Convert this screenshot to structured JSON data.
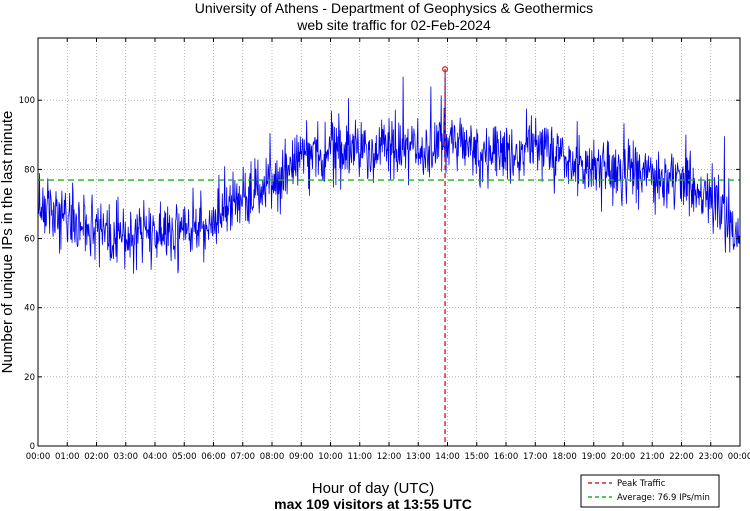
{
  "chart_data": {
    "type": "line",
    "title": "University of Athens - Department of Geophysics & Geothermics",
    "subtitle": "web site traffic for 02-Feb-2024",
    "xlabel": "Hour of day (UTC)",
    "ylabel": "Number of unique IPs in the last minute",
    "footer": "max 109 visitors at 13:55 UTC",
    "xlim": [
      0,
      24
    ],
    "ylim": [
      0,
      118
    ],
    "grid": true,
    "x_tick_labels": [
      "00:00",
      "01:00",
      "02:00",
      "03:00",
      "04:00",
      "05:00",
      "06:00",
      "07:00",
      "08:00",
      "09:00",
      "10:00",
      "11:00",
      "12:00",
      "13:00",
      "14:00",
      "15:00",
      "16:00",
      "17:00",
      "18:00",
      "19:00",
      "20:00",
      "21:00",
      "22:00",
      "23:00",
      "00:00"
    ],
    "y_ticks": [
      0,
      20,
      40,
      60,
      80,
      100
    ],
    "trend_hourly": {
      "hours": [
        0,
        1,
        2,
        3,
        4,
        5,
        6,
        7,
        8,
        9,
        10,
        11,
        12,
        13,
        14,
        15,
        16,
        17,
        18,
        19,
        20,
        21,
        22,
        23,
        24
      ],
      "values": [
        66,
        65,
        62,
        60,
        61,
        62,
        64,
        70,
        76,
        84,
        85,
        86,
        86,
        86,
        88,
        85,
        84,
        87,
        82,
        80,
        79,
        78,
        77,
        72,
        60
      ]
    },
    "peak": {
      "time_hours": 13.917,
      "value": 109,
      "label": "Peak Traffic",
      "color": "#d62020"
    },
    "average": {
      "value": 76.9,
      "label": "Average: 76.9 IPs/min",
      "color": "#20b020"
    },
    "series_color": "#0000ee",
    "legend_position": "bottom-right"
  }
}
